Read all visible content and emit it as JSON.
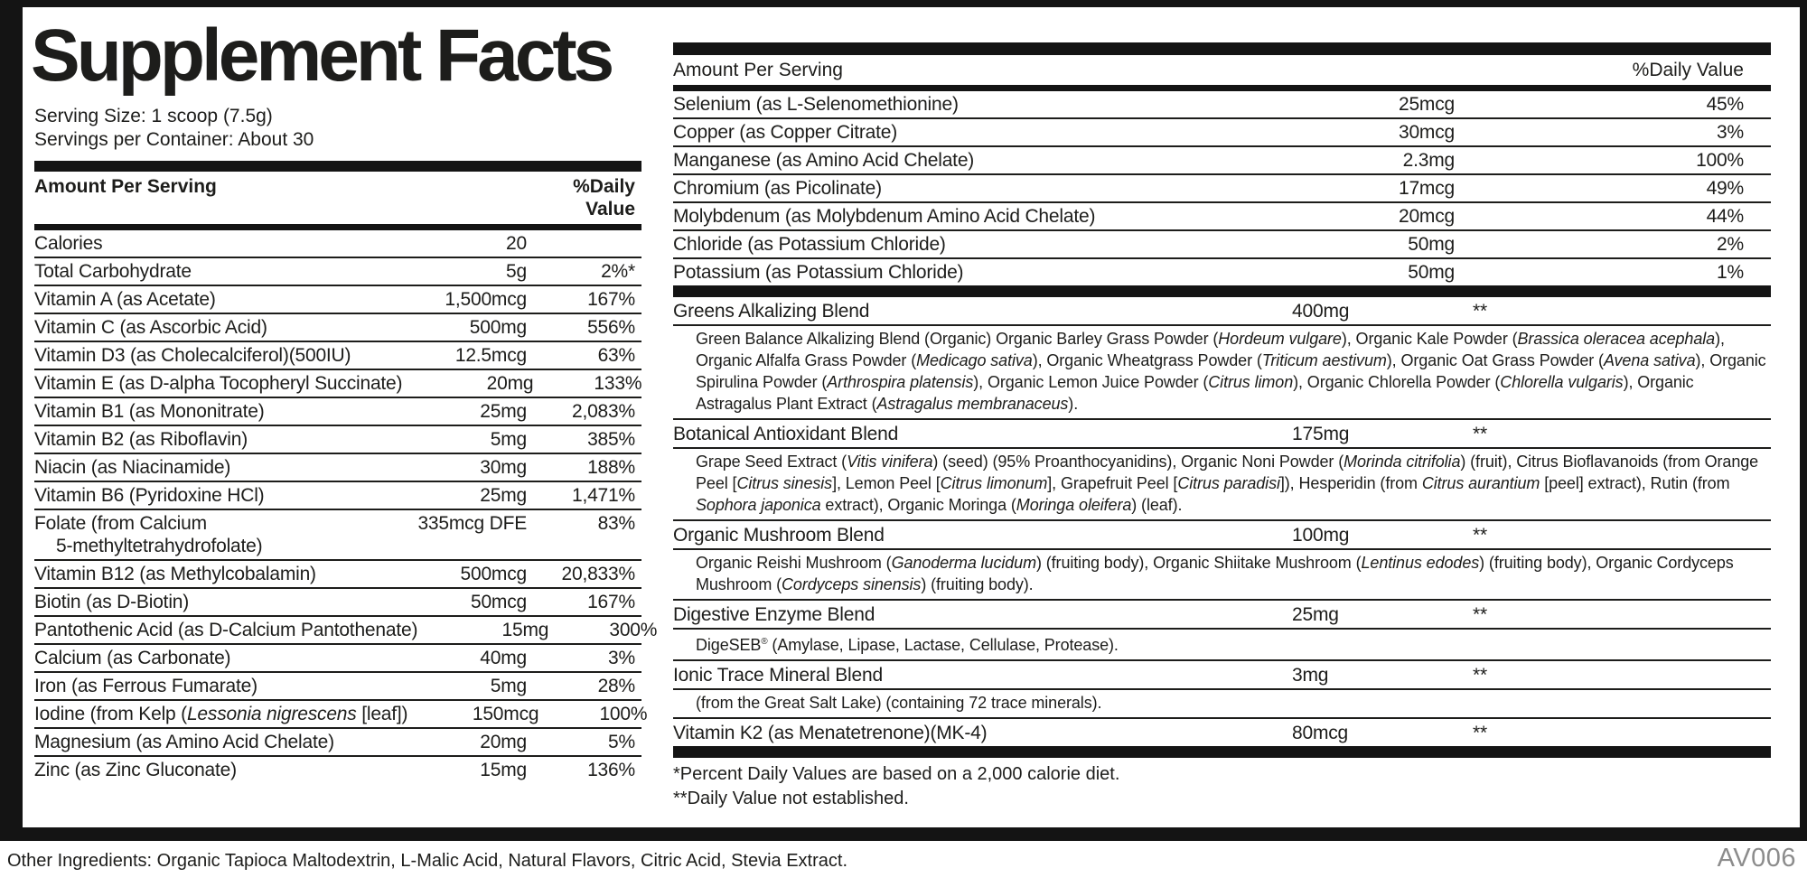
{
  "title": "Supplement Facts",
  "serving": {
    "size": "Serving Size: 1 scoop (7.5g)",
    "per_container": "Servings per Container: About 30"
  },
  "table_header": {
    "amount": "Amount Per Serving",
    "dv": "%Daily Value"
  },
  "left_rows": [
    {
      "name": "Calories",
      "amount": "20",
      "dv": ""
    },
    {
      "name": "Total Carbohydrate",
      "amount": "5g",
      "dv": "2%*"
    },
    {
      "name": "Vitamin A (as Acetate)",
      "amount": "1,500mcg",
      "dv": "167%"
    },
    {
      "name": "Vitamin C (as Ascorbic Acid)",
      "amount": "500mg",
      "dv": "556%"
    },
    {
      "name": "Vitamin D3 (as Cholecalciferol)(500IU)",
      "amount": "12.5mcg",
      "dv": "63%"
    },
    {
      "name": "Vitamin E (as D-alpha Tocopheryl Succinate)",
      "amount": "20mg",
      "dv": "133%"
    },
    {
      "name": "Vitamin B1 (as Mononitrate)",
      "amount": "25mg",
      "dv": "2,083%"
    },
    {
      "name": "Vitamin B2 (as Riboflavin)",
      "amount": "5mg",
      "dv": "385%"
    },
    {
      "name": "Niacin (as Niacinamide)",
      "amount": "30mg",
      "dv": "188%"
    },
    {
      "name": "Vitamin B6 (Pyridoxine HCl)",
      "amount": "25mg",
      "dv": "1,471%"
    },
    {
      "name": "Folate (from Calcium",
      "name2": "5-methyltetrahydrofolate)",
      "amount": "335mcg DFE",
      "dv": "83%"
    },
    {
      "name": "Vitamin B12 (as Methylcobalamin)",
      "amount": "500mcg",
      "dv": "20,833%"
    },
    {
      "name": "Biotin (as D-Biotin)",
      "amount": "50mcg",
      "dv": "167%"
    },
    {
      "name": "Pantothenic Acid (as D-Calcium Pantothenate)",
      "amount": "15mg",
      "dv": "300%"
    },
    {
      "name": "Calcium (as Carbonate)",
      "amount": "40mg",
      "dv": "3%"
    },
    {
      "name": "Iron (as Ferrous Fumarate)",
      "amount": "5mg",
      "dv": "28%"
    },
    {
      "name": "Iodine (from Kelp ({i}Lessonia nigrescens{/i} [leaf])",
      "amount": "150mcg",
      "dv": "100%"
    },
    {
      "name": "Magnesium (as Amino Acid Chelate)",
      "amount": "20mg",
      "dv": "5%"
    },
    {
      "name": "Zinc (as Zinc Gluconate)",
      "amount": "15mg",
      "dv": "136%"
    }
  ],
  "right_rows": [
    {
      "name": "Selenium (as L-Selenomethionine)",
      "amount": "25mcg",
      "dv": "45%"
    },
    {
      "name": "Copper (as Copper Citrate)",
      "amount": "30mcg",
      "dv": "3%"
    },
    {
      "name": "Manganese (as Amino Acid Chelate)",
      "amount": "2.3mg",
      "dv": "100%"
    },
    {
      "name": "Chromium (as Picolinate)",
      "amount": "17mcg",
      "dv": "49%"
    },
    {
      "name": "Molybdenum (as Molybdenum Amino Acid Chelate)",
      "amount": "20mcg",
      "dv": "44%"
    },
    {
      "name": "Chloride (as Potassium Chloride)",
      "amount": "50mg",
      "dv": "2%"
    },
    {
      "name": "Potassium (as Potassium Chloride)",
      "amount": "50mg",
      "dv": "1%"
    }
  ],
  "blends": [
    {
      "name": "Greens Alkalizing Blend",
      "amount": "400mg",
      "dv": "**",
      "desc": "Green Balance Alkalizing Blend (Organic) Organic Barley Grass Powder ({i}Hordeum vulgare{/i}), Organic Kale Powder ({i}Brassica oleracea acephala{/i}), Organic Alfalfa Grass Powder ({i}Medicago sativa{/i}), Organic Wheatgrass Powder ({i}Triticum aestivum{/i}), Organic Oat Grass Powder ({i}Avena sativa{/i}), Organic Spirulina Powder ({i}Arthrospira platensis{/i}), Organic Lemon Juice Powder ({i}Citrus limon{/i}), Organic Chlorella Powder ({i}Chlorella vulgaris{/i}), Organic Astragalus Plant Extract ({i}Astragalus membranaceus{/i})."
    },
    {
      "name": "Botanical Antioxidant Blend",
      "amount": "175mg",
      "dv": "**",
      "desc": "Grape Seed Extract ({i}Vitis vinifera{/i}) (seed) (95% Proanthocyanidins), Organic Noni Powder ({i}Morinda citrifolia{/i}) (fruit), Citrus Bioflavanoids (from Orange Peel [{i}Citrus sinesis{/i}], Lemon Peel [{i}Citrus limonum{/i}], Grapefruit Peel [{i}Citrus paradisi{/i}]), Hesperidin (from {i}Citrus aurantium{/i} [peel] extract), Rutin (from {i}Sophora japonica{/i} extract), Organic Moringa ({i}Moringa oleifera{/i}) (leaf)."
    },
    {
      "name": "Organic Mushroom Blend",
      "amount": "100mg",
      "dv": "**",
      "desc": "Organic Reishi Mushroom ({i}Ganoderma lucidum{/i}) (fruiting body), Organic Shiitake Mushroom ({i}Lentinus edodes{/i}) (fruiting body), Organic Cordyceps Mushroom ({i}Cordyceps sinensis{/i}) (fruiting body)."
    },
    {
      "name": "Digestive Enzyme Blend",
      "amount": "25mg",
      "dv": "**",
      "desc": "DigeSEB{sup}®{/sup} (Amylase, Lipase, Lactase, Cellulase, Protease)."
    },
    {
      "name": "Ionic Trace Mineral Blend",
      "amount": "3mg",
      "dv": "**",
      "desc": "(from the Great Salt Lake) (containing 72 trace minerals)."
    },
    {
      "name": "Vitamin K2 (as Menatetrenone)(MK-4)",
      "amount": "80mcg",
      "dv": "**",
      "desc": null
    }
  ],
  "footnotes": [
    "*Percent Daily Values are based on a 2,000 calorie diet.",
    "**Daily Value not established."
  ],
  "footer": {
    "other_ingredients": "Other Ingredients: Organic Tapioca Maltodextrin, L-Malic Acid, Natural Flavors, Citric Acid, Stevia Extract.",
    "code": "AV006"
  },
  "colors": {
    "ink": "#1d1d1b",
    "bar": "#141414",
    "code_gray": "#8c8c8c"
  }
}
